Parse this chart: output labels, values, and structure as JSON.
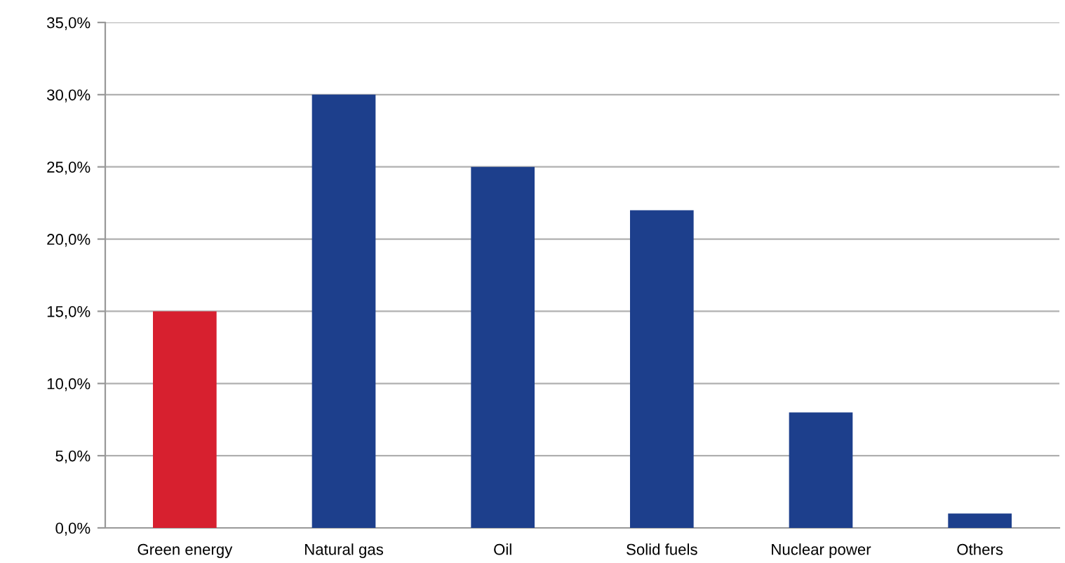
{
  "chart_data": {
    "type": "bar",
    "categories": [
      "Green energy",
      "Natural gas",
      "Oil",
      "Solid fuels",
      "Nuclear power",
      "Others"
    ],
    "values": [
      15,
      30,
      25,
      22,
      8,
      1
    ],
    "colors": [
      "#d7202f",
      "#1d3f8c",
      "#1d3f8c",
      "#1d3f8c",
      "#1d3f8c",
      "#1d3f8c"
    ],
    "ylim": [
      0,
      35
    ],
    "yticks": [
      {
        "value": 0,
        "label": "0,0%"
      },
      {
        "value": 5,
        "label": "5,0%"
      },
      {
        "value": 10,
        "label": "10,0%"
      },
      {
        "value": 15,
        "label": "15,0%"
      },
      {
        "value": 20,
        "label": "20,0%"
      },
      {
        "value": 25,
        "label": "25,0%"
      },
      {
        "value": 30,
        "label": "30,0%"
      },
      {
        "value": 35,
        "label": "35,0%"
      }
    ],
    "grid": "y"
  }
}
